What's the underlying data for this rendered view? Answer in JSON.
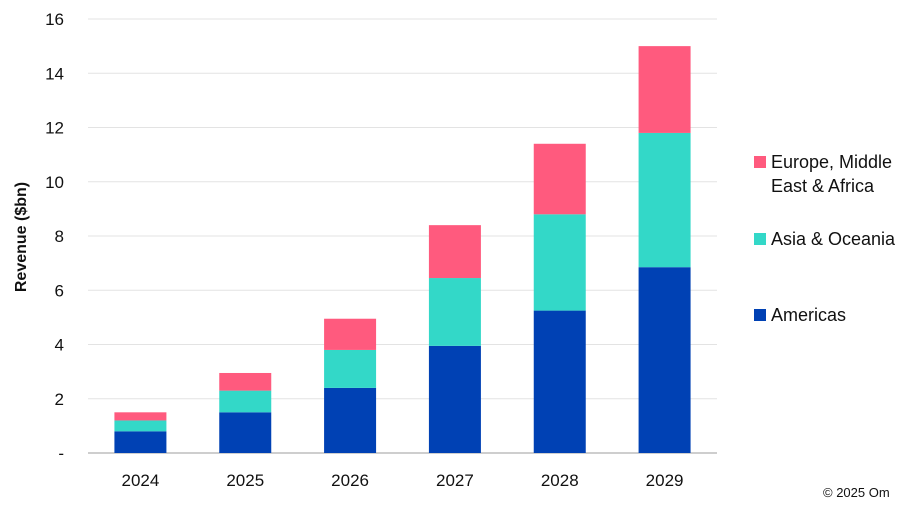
{
  "chart_data": {
    "type": "bar",
    "stacked": true,
    "categories": [
      "2024",
      "2025",
      "2026",
      "2027",
      "2028",
      "2029"
    ],
    "series": [
      {
        "name": "Americas",
        "color": "#0041B4",
        "values": [
          0.8,
          1.5,
          2.4,
          3.95,
          5.25,
          6.85
        ]
      },
      {
        "name": "Asia & Oceania",
        "color": "#33D8C8",
        "values": [
          0.4,
          0.8,
          1.4,
          2.5,
          3.55,
          4.95
        ]
      },
      {
        "name": "Europe, Middle East & Africa",
        "color": "#FF5A7E",
        "values": [
          0.3,
          0.65,
          1.15,
          1.95,
          2.6,
          3.2
        ]
      }
    ],
    "ylabel": "Revenue ($bn)",
    "ylim": [
      0,
      16
    ],
    "yticks": [
      0,
      2,
      4,
      6,
      8,
      10,
      12,
      14,
      16
    ],
    "ytick_labels": [
      "-",
      "2",
      "4",
      "6",
      "8",
      "10",
      "12",
      "14",
      "16"
    ],
    "grid": true,
    "legend_position": "right",
    "legend_order": [
      "Europe, Middle East & Africa",
      "Asia & Oceania",
      "Americas"
    ],
    "legend_lines": {
      "Europe, Middle East & Africa": [
        "Europe, Middle",
        "East & Africa"
      ],
      "Asia & Oceania": [
        "Asia & Oceania"
      ],
      "Americas": [
        "Americas"
      ]
    }
  },
  "footer": {
    "copyright": "© 2025 Om"
  }
}
